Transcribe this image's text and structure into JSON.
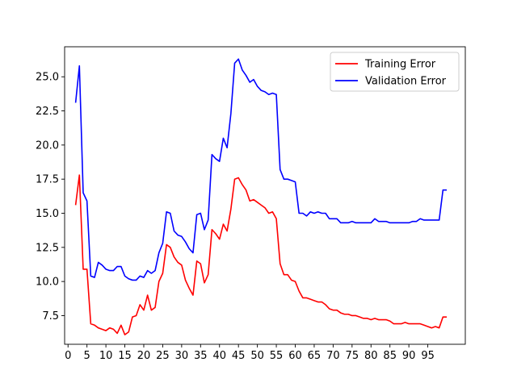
{
  "chart_data": {
    "type": "line",
    "title": "",
    "xlabel": "",
    "ylabel": "",
    "xlim": [
      -0.9,
      104.9
    ],
    "ylim": [
      5.4,
      27.2
    ],
    "xticks": [
      0,
      5,
      10,
      15,
      20,
      25,
      30,
      35,
      40,
      45,
      50,
      55,
      60,
      65,
      70,
      75,
      80,
      85,
      90,
      95
    ],
    "yticks": [
      7.5,
      10.0,
      12.5,
      15.0,
      17.5,
      20.0,
      22.5,
      25.0
    ],
    "ytick_labels": [
      "7.5",
      "10.0",
      "12.5",
      "15.0",
      "17.5",
      "20.0",
      "22.5",
      "25.0"
    ],
    "grid": false,
    "legend_position": "top-right",
    "x": [
      2,
      3,
      4,
      5,
      6,
      7,
      8,
      9,
      10,
      11,
      12,
      13,
      14,
      15,
      16,
      17,
      18,
      19,
      20,
      21,
      22,
      23,
      24,
      25,
      26,
      27,
      28,
      29,
      30,
      31,
      32,
      33,
      34,
      35,
      36,
      37,
      38,
      39,
      40,
      41,
      42,
      43,
      44,
      45,
      46,
      47,
      48,
      49,
      50,
      51,
      52,
      53,
      54,
      55,
      56,
      57,
      58,
      59,
      60,
      61,
      62,
      63,
      64,
      65,
      66,
      67,
      68,
      69,
      70,
      71,
      72,
      73,
      74,
      75,
      76,
      77,
      78,
      79,
      80,
      81,
      82,
      83,
      84,
      85,
      86,
      87,
      88,
      89,
      90,
      91,
      92,
      93,
      94,
      95,
      96,
      97,
      98,
      99,
      100
    ],
    "series": [
      {
        "name": "Training Error",
        "color": "#ff0000",
        "values": [
          15.6,
          17.8,
          10.9,
          10.9,
          6.9,
          6.8,
          6.6,
          6.5,
          6.4,
          6.6,
          6.5,
          6.2,
          6.8,
          6.1,
          6.3,
          7.4,
          7.5,
          8.3,
          7.9,
          9.0,
          7.9,
          8.1,
          10.0,
          10.6,
          12.7,
          12.5,
          11.8,
          11.4,
          11.2,
          10.1,
          9.5,
          9.0,
          11.5,
          11.3,
          9.9,
          10.5,
          13.8,
          13.5,
          13.1,
          14.2,
          13.7,
          15.3,
          17.5,
          17.6,
          17.1,
          16.7,
          15.9,
          16.0,
          15.8,
          15.6,
          15.4,
          15.0,
          15.1,
          14.6,
          11.3,
          10.5,
          10.5,
          10.1,
          10.0,
          9.3,
          8.8,
          8.8,
          8.7,
          8.6,
          8.5,
          8.5,
          8.3,
          8.0,
          7.9,
          7.9,
          7.7,
          7.6,
          7.6,
          7.5,
          7.5,
          7.4,
          7.3,
          7.3,
          7.2,
          7.3,
          7.2,
          7.2,
          7.2,
          7.1,
          6.9,
          6.9,
          6.9,
          7.0,
          6.9,
          6.9,
          6.9,
          6.9,
          6.8,
          6.7,
          6.6,
          6.7,
          6.6,
          7.4,
          7.4
        ]
      },
      {
        "name": "Validation Error",
        "color": "#0000ff",
        "values": [
          23.1,
          25.8,
          16.5,
          15.9,
          10.4,
          10.3,
          11.4,
          11.2,
          10.9,
          10.8,
          10.8,
          11.1,
          11.1,
          10.4,
          10.2,
          10.1,
          10.1,
          10.4,
          10.3,
          10.8,
          10.6,
          10.8,
          12.1,
          12.8,
          15.1,
          15.0,
          13.7,
          13.4,
          13.3,
          12.9,
          12.4,
          12.1,
          14.9,
          15.0,
          13.8,
          14.5,
          19.3,
          19.0,
          18.8,
          20.5,
          19.8,
          22.3,
          26.0,
          26.3,
          25.5,
          25.1,
          24.6,
          24.8,
          24.3,
          24.0,
          23.9,
          23.7,
          23.8,
          23.7,
          18.2,
          17.5,
          17.5,
          17.4,
          17.3,
          15.0,
          15.0,
          14.8,
          15.1,
          15.0,
          15.1,
          15.0,
          15.0,
          14.6,
          14.6,
          14.6,
          14.3,
          14.3,
          14.3,
          14.4,
          14.3,
          14.3,
          14.3,
          14.3,
          14.3,
          14.6,
          14.4,
          14.4,
          14.4,
          14.3,
          14.3,
          14.3,
          14.3,
          14.3,
          14.3,
          14.4,
          14.4,
          14.6,
          14.5,
          14.5,
          14.5,
          14.5,
          14.5,
          16.7,
          16.7
        ]
      }
    ]
  }
}
